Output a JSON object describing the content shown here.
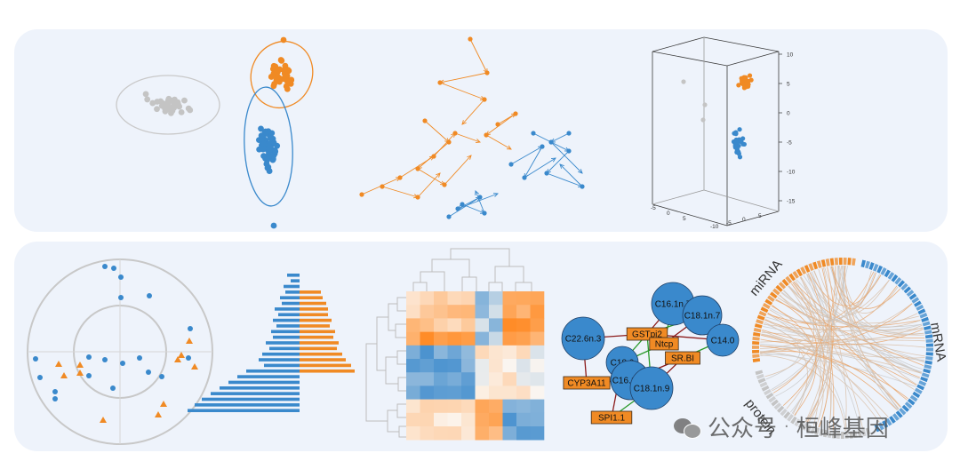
{
  "colors": {
    "orange": "#f08a24",
    "blue": "#3a89cc",
    "grey": "#c4c4c4",
    "panel": "#eef3fb"
  },
  "axis3d": {
    "right_ticks": [
      "10",
      "5",
      "0",
      "-5",
      "-10",
      "-15"
    ],
    "bottom_left_ticks": [
      "-5",
      "0",
      "5"
    ],
    "bottom_right_ticks": [
      "-10",
      "-5",
      "0",
      "5"
    ]
  },
  "network": {
    "big_nodes": [
      "C16.1n.7",
      "C18.1n.7",
      "C22.6n.3",
      "C14.0",
      "C18.0",
      "C16.1n.9",
      "C18.1n.9"
    ],
    "box_nodes": [
      "GSTpi2",
      "Ntcp",
      "SR.BI",
      "CYP3A11",
      "SPI1.1"
    ]
  },
  "circos": {
    "labels": [
      "miRNA",
      "mRNA",
      "protein"
    ]
  },
  "watermark": {
    "app": "公众号",
    "separator": "·",
    "name": "桓峰基因"
  }
}
